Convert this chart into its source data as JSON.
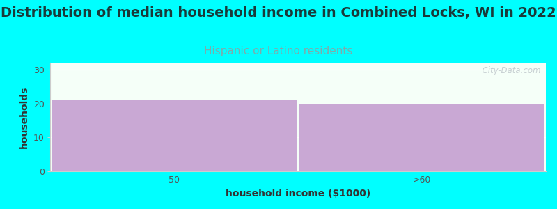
{
  "title": "Distribution of median household income in Combined Locks, WI in 2022",
  "subtitle": "Hispanic or Latino residents",
  "categories": [
    "50",
    ">60"
  ],
  "values": [
    21,
    20
  ],
  "bar_color": "#c9a8d4",
  "background_color": "#00ffff",
  "plot_bg_color": "#f5fff8",
  "xlabel": "household income ($1000)",
  "ylabel": "households",
  "ylim": [
    0,
    32
  ],
  "yticks": [
    0,
    10,
    20,
    30
  ],
  "title_fontsize": 14,
  "subtitle_fontsize": 11,
  "subtitle_color": "#7faaaa",
  "axis_label_fontsize": 10,
  "tick_fontsize": 9,
  "watermark": "  City-Data.com",
  "watermark_color": "#c0c8cc"
}
